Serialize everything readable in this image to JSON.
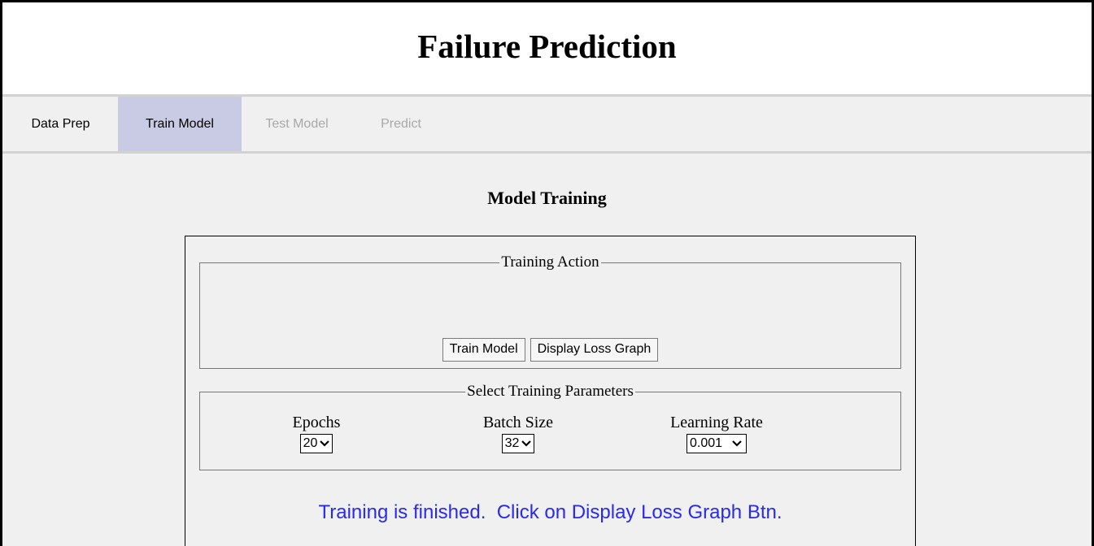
{
  "app": {
    "title": "Failure Prediction"
  },
  "nav": {
    "tabs": [
      {
        "label": "Data Prep",
        "state": "enabled"
      },
      {
        "label": "Train Model",
        "state": "active"
      },
      {
        "label": "Test Model",
        "state": "disabled"
      },
      {
        "label": "Predict",
        "state": "disabled"
      }
    ]
  },
  "main": {
    "section_title": "Model Training",
    "training_action": {
      "legend": "Training Action",
      "train_button": "Train Model",
      "loss_graph_button": "Display Loss Graph"
    },
    "training_params": {
      "legend": "Select Training Parameters",
      "epochs": {
        "label": "Epochs",
        "value": "20"
      },
      "batch_size": {
        "label": "Batch Size",
        "value": "32"
      },
      "learning_rate": {
        "label": "Learning Rate",
        "value": "0.001"
      }
    },
    "status": {
      "text": "Training is finished.  Click on Display Loss Graph Btn.",
      "color": "#2a2aef"
    }
  },
  "colors": {
    "active_tab": "#c9cbe4",
    "disabled_tab": "#a8a8a8"
  }
}
